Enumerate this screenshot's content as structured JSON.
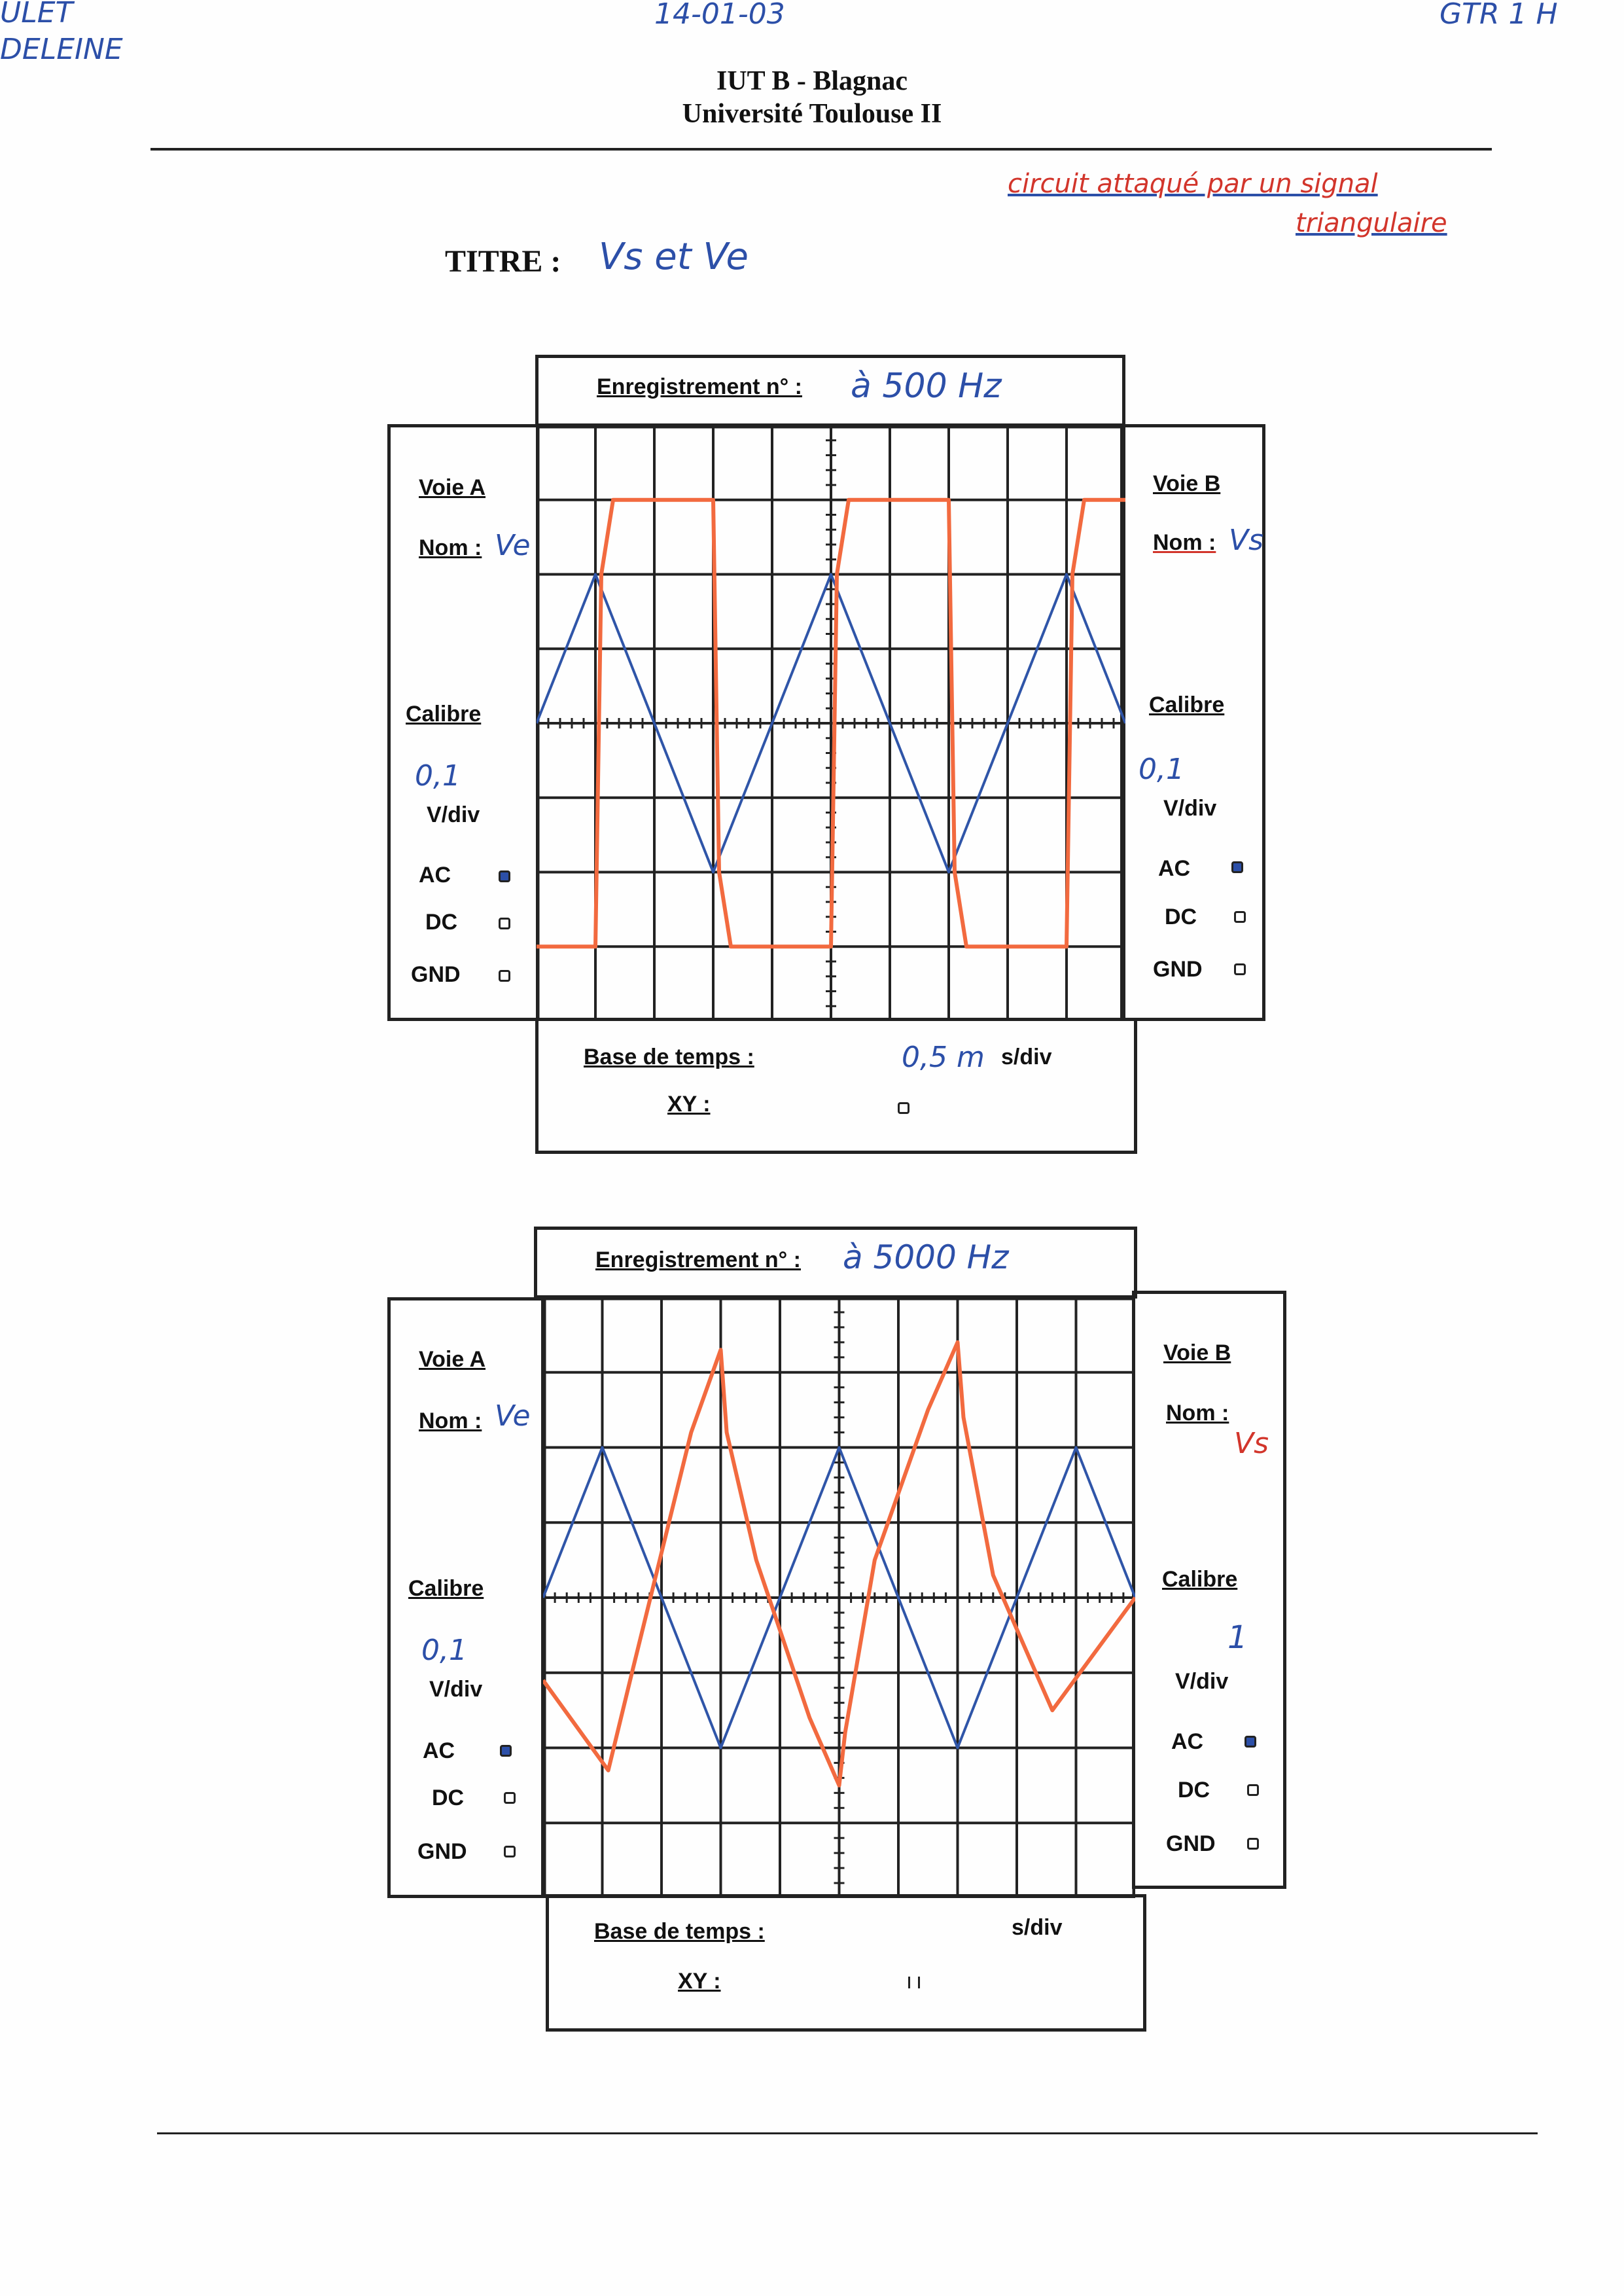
{
  "header": {
    "top_left_1": "ULET",
    "top_left_2": "DELEINE",
    "date": "14-01-03",
    "group": "GTR 1 H",
    "institution_1": "IUT B - Blagnac",
    "institution_2": "Université Toulouse II"
  },
  "note": {
    "line1": "circuit attaqué par un signal",
    "line2": "triangulaire"
  },
  "titre": {
    "label": "TITRE :",
    "value": "Vs et Ve"
  },
  "panels": [
    {
      "enregistrement_label": "Enregistrement n° :",
      "enregistrement_value": "à 500 Hz",
      "voie_a": {
        "title": "Voie A",
        "nom_label": "Nom :",
        "nom_value": "Ve",
        "calibre_label": "Calibre",
        "calibre_value": "0,1",
        "unit": "V/div",
        "ac": "AC",
        "dc": "DC",
        "gnd": "GND",
        "selected": "AC"
      },
      "voie_b": {
        "title": "Voie B",
        "nom_label": "Nom :",
        "nom_value": "Vs",
        "calibre_label": "Calibre",
        "calibre_value": "0,1",
        "unit": "V/div",
        "ac": "AC",
        "dc": "DC",
        "gnd": "GND",
        "selected": "AC"
      },
      "base_label": "Base de temps :",
      "base_value": "0,5 m",
      "base_unit": "s/div",
      "xy_label": "XY :"
    },
    {
      "enregistrement_label": "Enregistrement n° :",
      "enregistrement_value": "à 5000 Hz",
      "voie_a": {
        "title": "Voie A",
        "nom_label": "Nom :",
        "nom_value": "Ve",
        "calibre_label": "Calibre",
        "calibre_value": "0,1",
        "unit": "V/div",
        "ac": "AC",
        "dc": "DC",
        "gnd": "GND",
        "selected": "AC"
      },
      "voie_b": {
        "title": "Voie B",
        "nom_label": "Nom :",
        "nom_value": "Vs",
        "calibre_label": "Calibre",
        "calibre_value": "1",
        "unit": "V/div",
        "ac": "AC",
        "dc": "DC",
        "gnd": "GND",
        "selected": "AC"
      },
      "base_label": "Base de temps :",
      "base_value": "",
      "base_unit": "s/div",
      "xy_label": "XY :"
    }
  ],
  "colors": {
    "ve_trace": "#2f55a8",
    "vs_trace": "#f26a3f",
    "ink_blue": "#2c4fa8",
    "ink_red": "#d2352b"
  },
  "chart_data": [
    {
      "type": "line",
      "x_divisions": 10,
      "y_divisions": 8,
      "xlim": [
        0,
        10
      ],
      "ylim": [
        -4,
        4
      ],
      "series": [
        {
          "name": "Ve",
          "x": [
            0,
            1,
            3,
            5,
            7,
            9,
            10
          ],
          "y": [
            0,
            2,
            -2,
            2,
            -2,
            2,
            0
          ]
        },
        {
          "name": "Vs",
          "x": [
            0,
            1,
            1.1,
            1.3,
            3,
            3.1,
            3.3,
            5,
            5.1,
            5.3,
            7,
            7.1,
            7.3,
            9,
            9.1,
            9.3,
            10
          ],
          "y": [
            -3,
            -3,
            2,
            3,
            3,
            -2,
            -3,
            -3,
            2,
            3,
            3,
            -2,
            -3,
            -3,
            2,
            3,
            3
          ]
        }
      ]
    },
    {
      "type": "line",
      "x_divisions": 10,
      "y_divisions": 8,
      "xlim": [
        0,
        10
      ],
      "ylim": [
        -4,
        4
      ],
      "series": [
        {
          "name": "Ve",
          "x": [
            0,
            1,
            3,
            5,
            7,
            9,
            10
          ],
          "y": [
            0,
            2,
            -2,
            2,
            -2,
            2,
            0
          ]
        },
        {
          "name": "Vs",
          "x": [
            0,
            1.1,
            1.5,
            2.5,
            3,
            3.1,
            3.6,
            4.5,
            5,
            5.1,
            5.6,
            6.5,
            7,
            7.1,
            7.6,
            8.6,
            10
          ],
          "y": [
            -1.1,
            -2.3,
            -1.0,
            2.2,
            3.3,
            2.2,
            0.5,
            -1.6,
            -2.5,
            -1.8,
            0.5,
            2.5,
            3.4,
            2.4,
            0.3,
            -1.5,
            0.0
          ]
        }
      ]
    }
  ]
}
